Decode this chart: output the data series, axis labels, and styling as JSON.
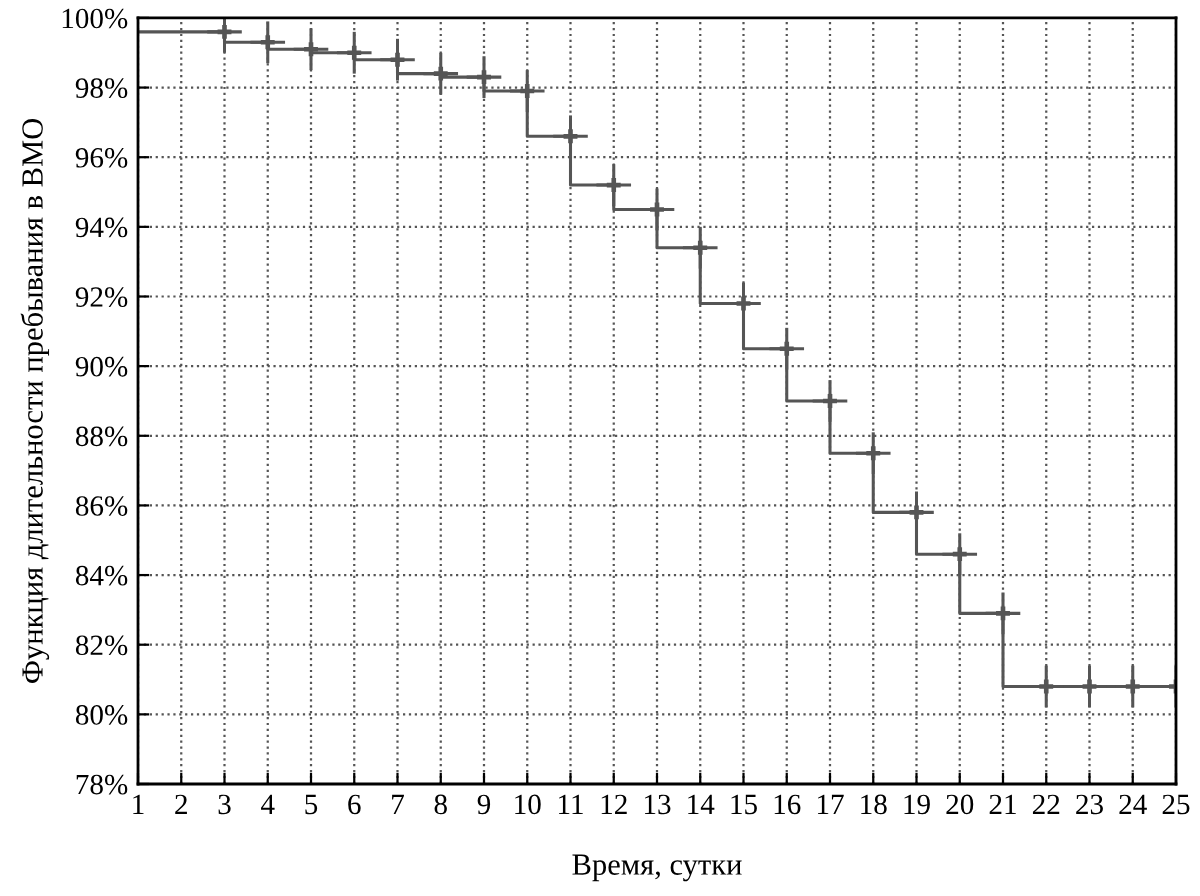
{
  "chart_data": {
    "type": "step",
    "xlabel": "Время, сутки",
    "ylabel": "Функция длительности пребывания в ВМО",
    "xlim": [
      1,
      25
    ],
    "xticks": [
      1,
      2,
      3,
      4,
      5,
      6,
      7,
      8,
      9,
      10,
      11,
      12,
      13,
      14,
      15,
      16,
      17,
      18,
      19,
      20,
      21,
      22,
      23,
      24,
      25
    ],
    "ylim": [
      78,
      100
    ],
    "yticks": [
      {
        "value": 78,
        "label": "78%"
      },
      {
        "value": 80,
        "label": "80%"
      },
      {
        "value": 82,
        "label": "82%"
      },
      {
        "value": 84,
        "label": "84%"
      },
      {
        "value": 86,
        "label": "86%"
      },
      {
        "value": 88,
        "label": "88%"
      },
      {
        "value": 90,
        "label": "90%"
      },
      {
        "value": 92,
        "label": "92%"
      },
      {
        "value": 94,
        "label": "94%"
      },
      {
        "value": 96,
        "label": "96%"
      },
      {
        "value": 98,
        "label": "98%"
      },
      {
        "value": 100,
        "label": "100%"
      }
    ],
    "grid": true,
    "series": [
      {
        "color": "#555555",
        "x": [
          1,
          2,
          3,
          4,
          5,
          6,
          7,
          8,
          9,
          10,
          11,
          12,
          13,
          14,
          15,
          16,
          17,
          18,
          19,
          20,
          21,
          22,
          23,
          24,
          25
        ],
        "values": [
          99.6,
          99.6,
          99.3,
          99.1,
          99.0,
          98.8,
          98.4,
          98.3,
          97.9,
          96.6,
          95.2,
          94.5,
          93.4,
          91.8,
          90.5,
          89.0,
          87.5,
          85.8,
          84.6,
          82.9,
          80.8,
          80.8,
          80.8,
          80.8,
          80.8
        ]
      },
      {
        "type": "scatter",
        "marker": "cross",
        "errors": [
          0.6,
          0.6,
          0.6,
          0.6,
          0.6,
          0.6,
          0.6,
          0.6,
          0.6,
          0.6,
          0.6,
          0.6,
          0.6,
          0.6,
          0.6,
          0.6,
          0.6,
          0.6,
          0.6,
          0.6,
          0.6,
          0.6,
          0.6
        ],
        "xerrors": [
          0.4,
          0.4,
          0.4,
          0.4,
          0.4,
          0.4,
          0.4,
          0.4,
          0.4,
          0.4,
          0.4,
          0.4,
          0.4,
          0.4,
          0.4,
          0.4,
          0.4,
          0.4,
          0.4,
          0.4,
          0.4,
          0.4,
          0.4
        ],
        "color": "#555555",
        "x": [
          3,
          4,
          5,
          6,
          7,
          8,
          9,
          10,
          11,
          12,
          13,
          14,
          15,
          16,
          17,
          18,
          19,
          20,
          21,
          22,
          23,
          24,
          25
        ],
        "values": [
          99.6,
          99.3,
          99.1,
          99.0,
          98.8,
          98.4,
          98.3,
          97.9,
          96.6,
          95.2,
          94.5,
          93.4,
          91.8,
          90.5,
          89.0,
          87.5,
          85.8,
          84.6,
          82.9,
          80.8,
          80.8,
          80.8,
          80.8
        ]
      }
    ]
  }
}
